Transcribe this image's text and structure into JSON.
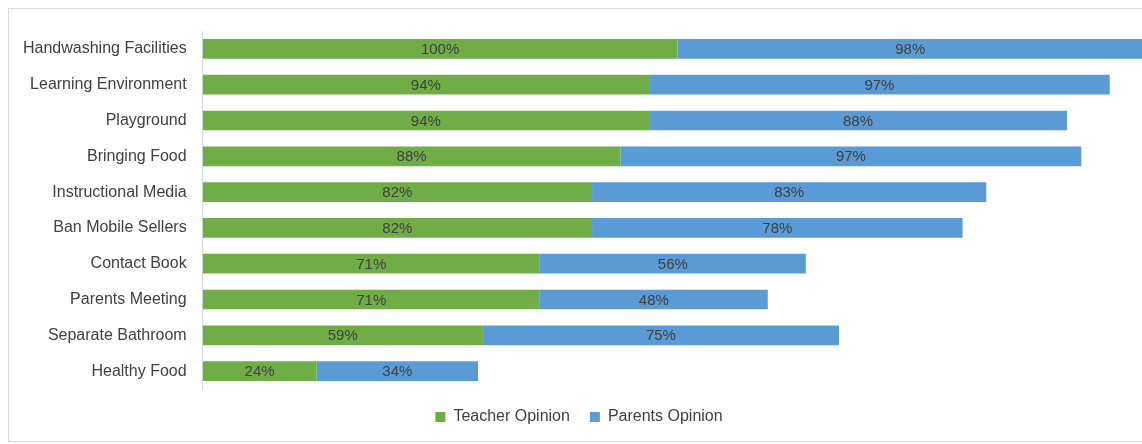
{
  "chart_data": {
    "type": "bar",
    "orientation": "horizontal",
    "stacked": true,
    "legend": "bottom",
    "tick_labels": "y",
    "categories": [
      "Handwashing Facilities",
      "Learning Environment",
      "Playground",
      "Bringing Food",
      "Instructional Media",
      "Ban Mobile Sellers",
      "Contact Book",
      "Parents Meeting",
      "Separate Bathroom",
      "Healthy Food"
    ],
    "series": [
      {
        "name": "Teacher Opinion",
        "color": "#70ad47",
        "values": [
          100,
          94,
          94,
          88,
          82,
          82,
          71,
          71,
          59,
          24
        ],
        "value_labels": [
          "100%",
          "94%",
          "94%",
          "88%",
          "82%",
          "82%",
          "71%",
          "71%",
          "59%",
          "24%"
        ]
      },
      {
        "name": "Parents Opinion",
        "color": "#5b9bd5",
        "values": [
          98,
          97,
          88,
          97,
          83,
          78,
          56,
          48,
          75,
          34
        ],
        "value_labels": [
          "98%",
          "97%",
          "88%",
          "97%",
          "83%",
          "78%",
          "56%",
          "48%",
          "75%",
          "34%"
        ]
      }
    ]
  }
}
